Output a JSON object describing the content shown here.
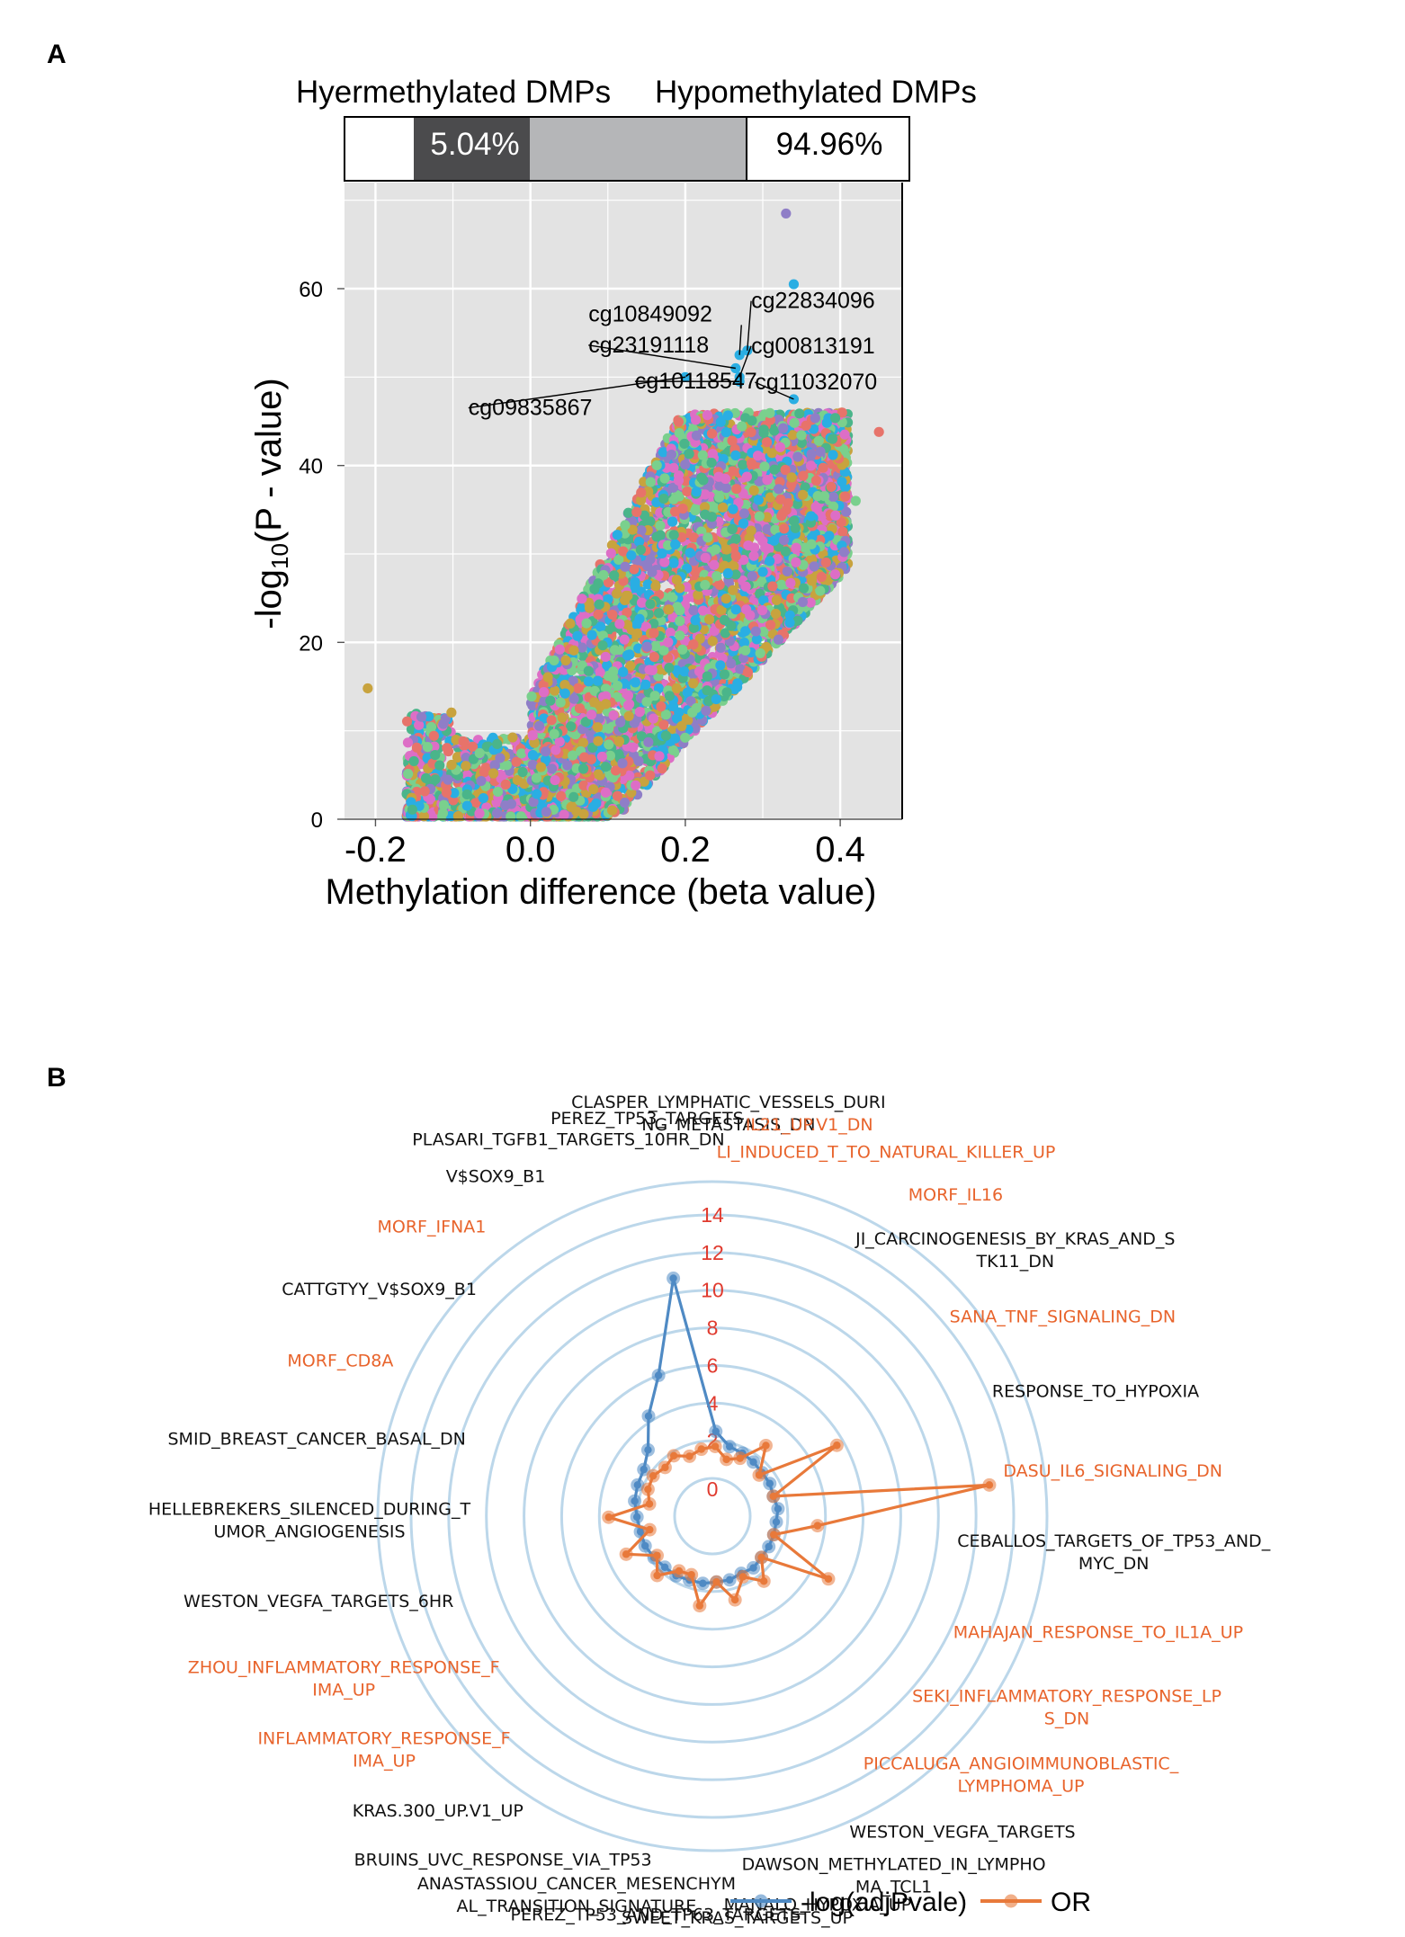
{
  "panel_a": {
    "letter": "A",
    "bar_labels": {
      "hyper": "Hyermethylated DMPs",
      "hypo": "Hypomethylated DMPs"
    },
    "bar_percents": {
      "hyper": "5.04%",
      "hypo": "94.96%"
    },
    "hyper_fraction": 0.0504,
    "hypo_fraction": 0.9496,
    "colors": {
      "hyper_bar": "#4b4b4d",
      "hypo_bar": "#b5b6b8",
      "panel_bg": "#e3e3e3",
      "point_palette": [
        "#2aaee3",
        "#dd6ec6",
        "#7ad08d",
        "#e7736a",
        "#8f7ec7",
        "#4ab58a",
        "#c8a33e"
      ]
    },
    "cg_labels": [
      "cg10849092",
      "cg22834096",
      "cg23191118",
      "cg00813191",
      "cg09835867",
      "cg10118547",
      "cg11032070"
    ]
  },
  "panel_b": {
    "letter": "B",
    "colors": {
      "series1": "#4f8ac4",
      "series2": "#e8793a",
      "grid": "#bcd7ea",
      "hl_label": "#e8642c",
      "tick": "#e03a2e"
    }
  },
  "chart_data": [
    {
      "type": "scatter",
      "title": "",
      "xlabel": "Methylation difference (beta value)",
      "ylabel": "-log10(P - value)",
      "ylabel_parts": {
        "pre": "-log",
        "sub": "10",
        "post": "(P - value)"
      },
      "xlim": [
        -0.24,
        0.48
      ],
      "ylim": [
        0,
        72
      ],
      "x_ticks": [
        "-0.2",
        "0.0",
        "0.2",
        "0.4"
      ],
      "y_ticks": [
        "0",
        "20",
        "40",
        "60"
      ],
      "grid": true,
      "labeled_points": [
        {
          "label": "cg10849092",
          "x": 0.27,
          "y": 52.5
        },
        {
          "label": "cg22834096",
          "x": 0.28,
          "y": 53.0
        },
        {
          "label": "cg23191118",
          "x": 0.265,
          "y": 51.0
        },
        {
          "label": "cg00813191",
          "x": 0.27,
          "y": 50.0
        },
        {
          "label": "cg09835867",
          "x": 0.2,
          "y": 50.0
        },
        {
          "label": "cg10118547",
          "x": 0.27,
          "y": 49.5
        },
        {
          "label": "cg11032070",
          "x": 0.34,
          "y": 47.5
        }
      ],
      "outliers": [
        {
          "x": 0.33,
          "y": 68.5
        },
        {
          "x": 0.34,
          "y": 60.5
        },
        {
          "x": 0.45,
          "y": 43.8
        },
        {
          "x": -0.21,
          "y": 14.8
        },
        {
          "x": 0.42,
          "y": 36.0
        },
        {
          "x": 0.39,
          "y": 43.0
        }
      ]
    },
    {
      "type": "radar",
      "title": "",
      "r_ticks": [
        "0",
        "2",
        "4",
        "6",
        "8",
        "10",
        "12",
        "14"
      ],
      "r_max": 14,
      "categories": [
        {
          "lines": [
            "CLASPER_LYMPHATIC_VESSELS_DURI",
            "NG_METASTASIS_DN"
          ],
          "highlight": false
        },
        {
          "lines": [
            "IL21_UP.V1_DN"
          ],
          "highlight": true
        },
        {
          "lines": [
            "LI_INDUCED_T_TO_NATURAL_KILLER_UP"
          ],
          "highlight": true
        },
        {
          "lines": [
            "MORF_IL16"
          ],
          "highlight": true
        },
        {
          "lines": [
            "JI_CARCINOGENESIS_BY_KRAS_AND_S",
            "TK11_DN"
          ],
          "highlight": false
        },
        {
          "lines": [
            "SANA_TNF_SIGNALING_DN"
          ],
          "highlight": true
        },
        {
          "lines": [
            "RESPONSE_TO_HYPOXIA"
          ],
          "highlight": false
        },
        {
          "lines": [
            "DASU_IL6_SIGNALING_DN"
          ],
          "highlight": true
        },
        {
          "lines": [
            "CEBALLOS_TARGETS_OF_TP53_AND_",
            "MYC_DN"
          ],
          "highlight": false
        },
        {
          "lines": [
            "MAHAJAN_RESPONSE_TO_IL1A_UP"
          ],
          "highlight": true
        },
        {
          "lines": [
            "SEKI_INFLAMMATORY_RESPONSE_LP",
            "S_DN"
          ],
          "highlight": true
        },
        {
          "lines": [
            "PICCALUGA_ANGIOIMMUNOBLASTIC_",
            "LYMPHOMA_UP"
          ],
          "highlight": true
        },
        {
          "lines": [
            "WESTON_VEGFA_TARGETS"
          ],
          "highlight": false
        },
        {
          "lines": [
            "DAWSON_METHYLATED_IN_LYMPHO",
            "MA_TCL1"
          ],
          "highlight": false
        },
        {
          "lines": [
            "MANALO_HYPOXIA_UP"
          ],
          "highlight": false
        },
        {
          "lines": [
            "SWEET_KRAS_TARGETS_UP"
          ],
          "highlight": false
        },
        {
          "lines": [
            "PEREZ_TP53_AND_TP63_TARGETS"
          ],
          "highlight": false
        },
        {
          "lines": [
            "ANASTASSIOU_CANCER_MESENCHYM",
            "AL_TRANSITION_SIGNATURE"
          ],
          "highlight": false
        },
        {
          "lines": [
            "BRUINS_UVC_RESPONSE_VIA_TP53"
          ],
          "highlight": false
        },
        {
          "lines": [
            "KRAS.300_UP.V1_UP"
          ],
          "highlight": false
        },
        {
          "lines": [
            "INFLAMMATORY_RESPONSE_F",
            "IMA_UP"
          ],
          "highlight": true
        },
        {
          "lines": [
            "ZHOU_INFLAMMATORY_RESPONSE_F",
            "IMA_UP"
          ],
          "highlight": true
        },
        {
          "lines": [
            "WESTON_VEGFA_TARGETS_6HR"
          ],
          "highlight": false
        },
        {
          "lines": [
            "HELLEBREKERS_SILENCED_DURING_T",
            "UMOR_ANGIOGENESIS"
          ],
          "highlight": false
        },
        {
          "lines": [
            "SMID_BREAST_CANCER_BASAL_DN"
          ],
          "highlight": false
        },
        {
          "lines": [
            "MORF_CD8A"
          ],
          "highlight": true
        },
        {
          "lines": [
            "CATTGTYY_V$SOX9_B1"
          ],
          "highlight": false
        },
        {
          "lines": [
            "MORF_IFNA1"
          ],
          "highlight": true
        },
        {
          "lines": [
            "V$SOX9_B1"
          ],
          "highlight": false
        },
        {
          "lines": [
            "PLASARI_TGFB1_TARGETS_10HR_DN"
          ],
          "highlight": false
        },
        {
          "lines": [
            "PEREZ_TP53_TARGETS"
          ],
          "highlight": false
        }
      ],
      "series": [
        {
          "name": "-log(adjPvale)",
          "values": [
            2.5,
            1.8,
            1.7,
            1.6,
            1.5,
            1.5,
            1.4,
            1.5,
            1.4,
            1.4,
            1.4,
            1.4,
            1.5,
            1.4,
            1.5,
            1.5,
            1.6,
            1.6,
            1.7,
            1.7,
            1.8,
            1.9,
            1.9,
            2.0,
            2.2,
            2.3,
            2.4,
            2.9,
            4.3,
            6.0,
            10.8
          ]
        },
        {
          "name": "OR",
          "values": [
            1.7,
            1.1,
            1.4,
            2.7,
            1.3,
            5.6,
            1.4,
            12.8,
            3.6,
            1.4,
            5.0,
            1.4,
            2.4,
            1.6,
            2.6,
            1.5,
            2.8,
            1.3,
            1.4,
            2.3,
            1.6,
            3.0,
            1.4,
            3.5,
            1.4,
            1.7,
            1.8,
            1.6,
            1.8,
            1.4,
            1.6
          ]
        }
      ],
      "legend": [
        "-log(adjPvale)",
        "OR"
      ]
    }
  ]
}
